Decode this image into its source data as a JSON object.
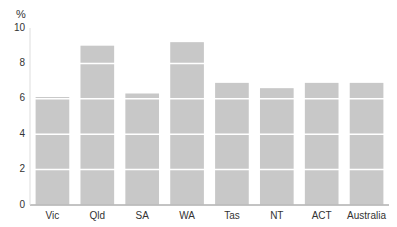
{
  "chart_data": {
    "type": "bar",
    "y_label": "%",
    "categories": [
      "Vic",
      "Qld",
      "SA",
      "WA",
      "Tas",
      "NT",
      "ACT",
      "Australia"
    ],
    "values": [
      6.1,
      9.0,
      6.3,
      9.2,
      6.9,
      6.6,
      6.9,
      6.9
    ],
    "color": "#c8c8c8",
    "ylim": [
      0,
      10
    ],
    "yticks": [
      0,
      2,
      4,
      6,
      8,
      10
    ],
    "grid": true
  }
}
